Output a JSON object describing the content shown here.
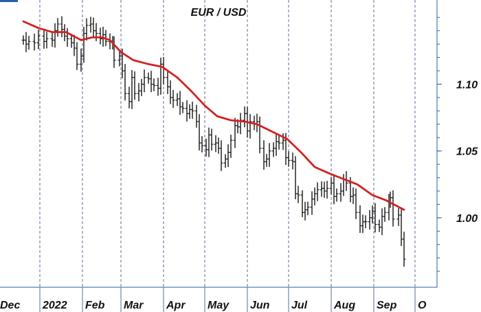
{
  "chart_data": {
    "type": "line",
    "title": "EUR / USD",
    "colors": {
      "price": "#000000",
      "moving_average": "#d42020",
      "grid": "#5a6e8c",
      "accent": "#2a5caa"
    },
    "x_tick_labels": [
      "Dec",
      "2022",
      "Feb",
      "Mar",
      "Apr",
      "May",
      "Jun",
      "Jul",
      "Aug",
      "Sep",
      "O"
    ],
    "y_ticks": [
      {
        "value": 1.0,
        "label": "1.00"
      },
      {
        "value": 1.05,
        "label": "1.05"
      },
      {
        "value": 1.1,
        "label": "1.10"
      }
    ],
    "ylim": [
      0.948,
      1.163
    ],
    "grid": "vertical dashed at month starts",
    "y_axis_side": "right",
    "series": [
      {
        "style": "ohlc-bars",
        "points": [
          [
            "2021-12-20",
            1.133
          ],
          [
            "2021-12-22",
            1.13
          ],
          [
            "2021-12-24",
            1.132
          ],
          [
            "2021-12-28",
            1.131
          ],
          [
            "2021-12-31",
            1.136
          ],
          [
            "2022-01-04",
            1.132
          ],
          [
            "2022-01-06",
            1.134
          ],
          [
            "2022-01-10",
            1.133
          ],
          [
            "2022-01-12",
            1.14
          ],
          [
            "2022-01-14",
            1.145
          ],
          [
            "2022-01-17",
            1.141
          ],
          [
            "2022-01-19",
            1.136
          ],
          [
            "2022-01-21",
            1.134
          ],
          [
            "2022-01-24",
            1.131
          ],
          [
            "2022-01-26",
            1.127
          ],
          [
            "2022-01-28",
            1.115
          ],
          [
            "2022-01-31",
            1.121
          ],
          [
            "2022-02-02",
            1.138
          ],
          [
            "2022-02-04",
            1.144
          ],
          [
            "2022-02-07",
            1.145
          ],
          [
            "2022-02-09",
            1.14
          ],
          [
            "2022-02-11",
            1.138
          ],
          [
            "2022-02-14",
            1.134
          ],
          [
            "2022-02-16",
            1.137
          ],
          [
            "2022-02-18",
            1.132
          ],
          [
            "2022-02-21",
            1.132
          ],
          [
            "2022-02-23",
            1.13
          ],
          [
            "2022-02-24",
            1.118
          ],
          [
            "2022-02-28",
            1.121
          ],
          [
            "2022-03-02",
            1.11
          ],
          [
            "2022-03-04",
            1.093
          ],
          [
            "2022-03-07",
            1.087
          ],
          [
            "2022-03-09",
            1.105
          ],
          [
            "2022-03-11",
            1.093
          ],
          [
            "2022-03-14",
            1.095
          ],
          [
            "2022-03-16",
            1.1
          ],
          [
            "2022-03-18",
            1.105
          ],
          [
            "2022-03-21",
            1.104
          ],
          [
            "2022-03-23",
            1.1
          ],
          [
            "2022-03-25",
            1.099
          ],
          [
            "2022-03-28",
            1.097
          ],
          [
            "2022-03-30",
            1.115
          ],
          [
            "2022-04-01",
            1.105
          ],
          [
            "2022-04-04",
            1.098
          ],
          [
            "2022-04-06",
            1.09
          ],
          [
            "2022-04-08",
            1.088
          ],
          [
            "2022-04-11",
            1.089
          ],
          [
            "2022-04-13",
            1.083
          ],
          [
            "2022-04-15",
            1.082
          ],
          [
            "2022-04-18",
            1.078
          ],
          [
            "2022-04-20",
            1.081
          ],
          [
            "2022-04-22",
            1.08
          ],
          [
            "2022-04-25",
            1.072
          ],
          [
            "2022-04-27",
            1.056
          ],
          [
            "2022-04-29",
            1.054
          ],
          [
            "2022-05-02",
            1.051
          ],
          [
            "2022-05-04",
            1.062
          ],
          [
            "2022-05-06",
            1.055
          ],
          [
            "2022-05-09",
            1.056
          ],
          [
            "2022-05-11",
            1.052
          ],
          [
            "2022-05-13",
            1.041
          ],
          [
            "2022-05-16",
            1.044
          ],
          [
            "2022-05-18",
            1.049
          ],
          [
            "2022-05-20",
            1.058
          ],
          [
            "2022-05-23",
            1.069
          ],
          [
            "2022-05-25",
            1.068
          ],
          [
            "2022-05-27",
            1.073
          ],
          [
            "2022-05-30",
            1.078
          ],
          [
            "2022-06-01",
            1.065
          ],
          [
            "2022-06-03",
            1.072
          ],
          [
            "2022-06-06",
            1.07
          ],
          [
            "2022-06-08",
            1.072
          ],
          [
            "2022-06-10",
            1.052
          ],
          [
            "2022-06-13",
            1.042
          ],
          [
            "2022-06-15",
            1.044
          ],
          [
            "2022-06-17",
            1.05
          ],
          [
            "2022-06-20",
            1.052
          ],
          [
            "2022-06-22",
            1.057
          ],
          [
            "2022-06-24",
            1.056
          ],
          [
            "2022-06-27",
            1.058
          ],
          [
            "2022-06-29",
            1.045
          ],
          [
            "2022-07-01",
            1.043
          ],
          [
            "2022-07-04",
            1.042
          ],
          [
            "2022-07-06",
            1.018
          ],
          [
            "2022-07-08",
            1.017
          ],
          [
            "2022-07-11",
            1.004
          ],
          [
            "2022-07-13",
            1.006
          ],
          [
            "2022-07-15",
            1.008
          ],
          [
            "2022-07-18",
            1.014
          ],
          [
            "2022-07-20",
            1.018
          ],
          [
            "2022-07-22",
            1.021
          ],
          [
            "2022-07-25",
            1.022
          ],
          [
            "2022-07-27",
            1.02
          ],
          [
            "2022-07-29",
            1.022
          ],
          [
            "2022-08-01",
            1.026
          ],
          [
            "2022-08-03",
            1.016
          ],
          [
            "2022-08-05",
            1.018
          ],
          [
            "2022-08-08",
            1.02
          ],
          [
            "2022-08-10",
            1.029
          ],
          [
            "2022-08-12",
            1.026
          ],
          [
            "2022-08-15",
            1.016
          ],
          [
            "2022-08-17",
            1.017
          ],
          [
            "2022-08-19",
            1.004
          ],
          [
            "2022-08-22",
            0.994
          ],
          [
            "2022-08-24",
            0.997
          ],
          [
            "2022-08-26",
            0.997
          ],
          [
            "2022-08-29",
            1.0
          ],
          [
            "2022-08-31",
            1.005
          ],
          [
            "2022-09-02",
            0.995
          ],
          [
            "2022-09-05",
            0.993
          ],
          [
            "2022-09-07",
            1.001
          ],
          [
            "2022-09-09",
            1.004
          ],
          [
            "2022-09-12",
            1.012
          ],
          [
            "2022-09-13",
            1.015
          ],
          [
            "2022-09-15",
            0.999
          ],
          [
            "2022-09-19",
            1.002
          ],
          [
            "2022-09-21",
            0.984
          ],
          [
            "2022-09-23",
            0.969
          ]
        ]
      },
      {
        "style": "moving-average",
        "points": [
          [
            "2021-12-20",
            1.147
          ],
          [
            "2021-12-31",
            1.142
          ],
          [
            "2022-01-10",
            1.139
          ],
          [
            "2022-01-20",
            1.139
          ],
          [
            "2022-01-31",
            1.133
          ],
          [
            "2022-02-08",
            1.135
          ],
          [
            "2022-02-15",
            1.135
          ],
          [
            "2022-02-21",
            1.133
          ],
          [
            "2022-03-01",
            1.124
          ],
          [
            "2022-03-10",
            1.118
          ],
          [
            "2022-03-21",
            1.115
          ],
          [
            "2022-03-31",
            1.113
          ],
          [
            "2022-04-11",
            1.105
          ],
          [
            "2022-04-21",
            1.095
          ],
          [
            "2022-05-01",
            1.084
          ],
          [
            "2022-05-10",
            1.076
          ],
          [
            "2022-05-20",
            1.073
          ],
          [
            "2022-05-30",
            1.072
          ],
          [
            "2022-06-08",
            1.07
          ],
          [
            "2022-06-20",
            1.064
          ],
          [
            "2022-06-30",
            1.059
          ],
          [
            "2022-07-10",
            1.049
          ],
          [
            "2022-07-20",
            1.038
          ],
          [
            "2022-07-31",
            1.033
          ],
          [
            "2022-08-10",
            1.029
          ],
          [
            "2022-08-20",
            1.025
          ],
          [
            "2022-08-31",
            1.017
          ],
          [
            "2022-09-10",
            1.013
          ],
          [
            "2022-09-23",
            1.006
          ]
        ]
      }
    ]
  }
}
